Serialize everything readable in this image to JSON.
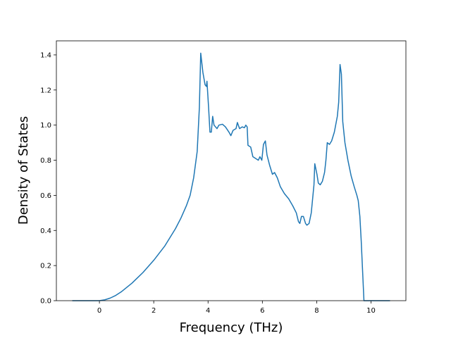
{
  "chart_data": {
    "type": "line",
    "xlabel": "Frequency (THz)",
    "ylabel": "Density of States",
    "color": "#1f77b4",
    "x": [
      -1.0,
      0.0,
      0.2,
      0.4,
      0.6,
      0.8,
      1.0,
      1.2,
      1.4,
      1.6,
      1.8,
      2.0,
      2.2,
      2.4,
      2.6,
      2.8,
      3.0,
      3.2,
      3.34,
      3.47,
      3.6,
      3.68,
      3.73,
      3.81,
      3.89,
      3.94,
      3.96,
      4.02,
      4.07,
      4.12,
      4.17,
      4.22,
      4.33,
      4.4,
      4.53,
      4.64,
      4.77,
      4.84,
      4.92,
      5.03,
      5.08,
      5.16,
      5.26,
      5.34,
      5.39,
      5.44,
      5.47,
      5.57,
      5.65,
      5.75,
      5.85,
      5.91,
      5.98,
      6.04,
      6.11,
      6.17,
      6.27,
      6.37,
      6.45,
      6.55,
      6.66,
      6.81,
      6.97,
      7.12,
      7.25,
      7.33,
      7.38,
      7.44,
      7.51,
      7.59,
      7.64,
      7.72,
      7.8,
      7.85,
      7.9,
      7.93,
      8.01,
      8.06,
      8.13,
      8.21,
      8.29,
      8.34,
      8.39,
      8.47,
      8.55,
      8.65,
      8.76,
      8.81,
      8.86,
      8.91,
      8.96,
      9.04,
      9.15,
      9.27,
      9.38,
      9.48,
      9.53,
      9.59,
      9.64,
      9.69,
      9.74,
      10.7
    ],
    "values": [
      0,
      0,
      0.005,
      0.015,
      0.03,
      0.05,
      0.075,
      0.1,
      0.13,
      0.16,
      0.195,
      0.23,
      0.27,
      0.31,
      0.36,
      0.41,
      0.47,
      0.54,
      0.6,
      0.7,
      0.85,
      1.1,
      1.41,
      1.3,
      1.23,
      1.22,
      1.25,
      1.1,
      0.96,
      0.96,
      1.05,
      1.0,
      0.98,
      1.0,
      1.005,
      0.99,
      0.96,
      0.94,
      0.97,
      0.98,
      1.015,
      0.98,
      0.99,
      0.985,
      1.0,
      0.99,
      0.885,
      0.875,
      0.82,
      0.81,
      0.8,
      0.82,
      0.8,
      0.89,
      0.91,
      0.83,
      0.77,
      0.72,
      0.73,
      0.7,
      0.65,
      0.61,
      0.58,
      0.54,
      0.5,
      0.45,
      0.44,
      0.48,
      0.48,
      0.44,
      0.43,
      0.44,
      0.5,
      0.58,
      0.66,
      0.78,
      0.72,
      0.67,
      0.66,
      0.68,
      0.73,
      0.8,
      0.9,
      0.89,
      0.91,
      0.96,
      1.05,
      1.13,
      1.345,
      1.29,
      1.02,
      0.9,
      0.8,
      0.71,
      0.65,
      0.6,
      0.57,
      0.48,
      0.34,
      0.17,
      0,
      0
    ],
    "xlim": [
      -1.585,
      11.285
    ],
    "xticks": [
      0,
      2,
      4,
      6,
      8,
      10
    ],
    "ylim": [
      0,
      1.48
    ],
    "yticks": [
      {
        "value": 0,
        "label": "0.0"
      },
      0.2,
      0.4,
      0.6,
      0.8,
      {
        "value": 1,
        "label": "1.0"
      },
      1.2,
      1.4
    ]
  }
}
